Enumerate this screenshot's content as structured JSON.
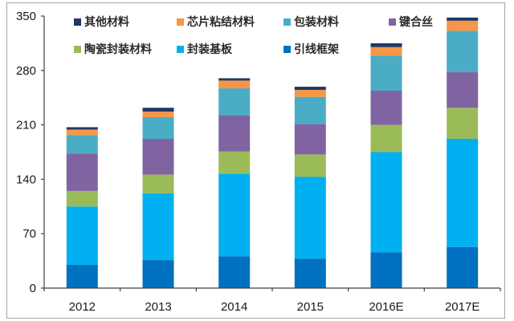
{
  "chart_data": {
    "type": "bar",
    "stacked": true,
    "title": "",
    "xlabel": "",
    "ylabel": "",
    "ylim": [
      0,
      350
    ],
    "yticks": [
      0,
      70,
      140,
      210,
      280,
      350
    ],
    "grid": false,
    "legend_position": "top-inside",
    "categories": [
      "2012",
      "2013",
      "2014",
      "2015",
      "2016E",
      "2017E"
    ],
    "series": [
      {
        "name": "引线框架",
        "color": "#0070C0",
        "values": [
          30,
          36,
          41,
          38,
          46,
          53
        ]
      },
      {
        "name": "封装基板",
        "color": "#00B0F0",
        "values": [
          75,
          86,
          106,
          105,
          129,
          139
        ]
      },
      {
        "name": "陶瓷封装材料",
        "color": "#9BBB59",
        "values": [
          20,
          24,
          29,
          29,
          35,
          40
        ]
      },
      {
        "name": "键合丝",
        "color": "#8064A2",
        "values": [
          48,
          46,
          46,
          39,
          44,
          46
        ]
      },
      {
        "name": "包装材料",
        "color": "#4BACC6",
        "values": [
          24,
          28,
          35,
          35,
          45,
          53
        ]
      },
      {
        "name": "芯片粘结材料",
        "color": "#F79646",
        "values": [
          7,
          7,
          10,
          9,
          11,
          13
        ]
      },
      {
        "name": "其他材料",
        "color": "#1F3864",
        "values": [
          3,
          5,
          3,
          4,
          5,
          4
        ]
      }
    ]
  },
  "legend": {
    "items": [
      {
        "label": "其他材料",
        "color": "#1F3864"
      },
      {
        "label": "芯片粘结材料",
        "color": "#F79646"
      },
      {
        "label": "包装材料",
        "color": "#4BACC6"
      },
      {
        "label": "键合丝",
        "color": "#8064A2"
      },
      {
        "label": "陶瓷封装材料",
        "color": "#9BBB59"
      },
      {
        "label": "封装基板",
        "color": "#00B0F0"
      },
      {
        "label": "引线框架",
        "color": "#0070C0"
      }
    ]
  },
  "axis": {
    "y_ticks": [
      "0",
      "70",
      "140",
      "210",
      "280",
      "350"
    ],
    "x_labels": [
      "2012",
      "2013",
      "2014",
      "2015",
      "2016E",
      "2017E"
    ]
  }
}
